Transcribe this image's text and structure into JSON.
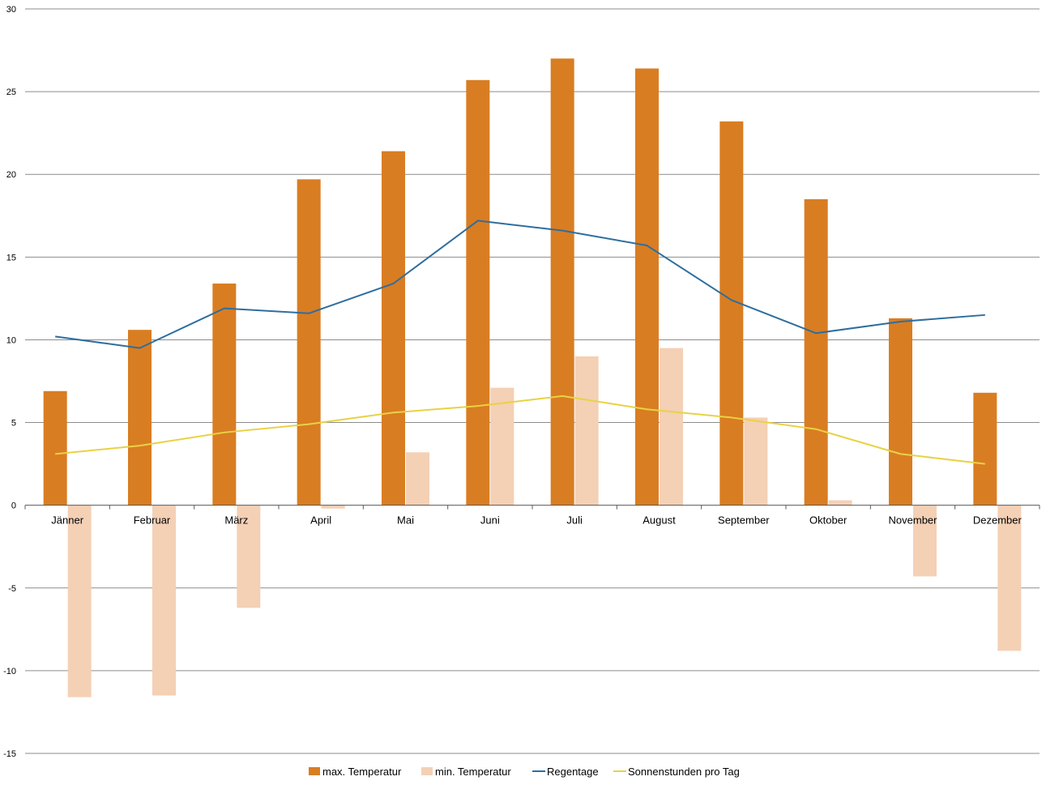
{
  "chart_data": {
    "type": "bar",
    "categories": [
      "Jänner",
      "Februar",
      "März",
      "April",
      "Mai",
      "Juni",
      "Juli",
      "August",
      "September",
      "Oktober",
      "November",
      "Dezember"
    ],
    "series": [
      {
        "name": "max. Temperatur",
        "type": "bar",
        "color": "#D97D22",
        "values": [
          6.9,
          10.6,
          13.4,
          19.7,
          21.4,
          25.7,
          27.0,
          26.4,
          23.2,
          18.5,
          11.3,
          6.8
        ]
      },
      {
        "name": "min. Temperatur",
        "type": "bar",
        "color": "#F4D0B5",
        "values": [
          -11.6,
          -11.5,
          -6.2,
          -0.2,
          3.2,
          7.1,
          9.0,
          9.5,
          5.3,
          0.3,
          -4.3,
          -8.8
        ]
      },
      {
        "name": "Regentage",
        "type": "line",
        "color": "#2E6E9E",
        "values": [
          10.2,
          9.5,
          11.9,
          11.6,
          13.4,
          17.2,
          16.6,
          15.7,
          12.4,
          10.4,
          11.1,
          11.5
        ]
      },
      {
        "name": "Sonnenstunden pro Tag",
        "type": "line",
        "color": "#E8D245",
        "values": [
          3.1,
          3.6,
          4.4,
          4.9,
          5.6,
          6.0,
          6.6,
          5.8,
          5.3,
          4.6,
          3.1,
          2.5
        ]
      }
    ],
    "ylim": [
      -15,
      30
    ],
    "yticks": [
      -15,
      -10,
      -5,
      0,
      5,
      10,
      15,
      20,
      25,
      30
    ],
    "title": "",
    "xlabel": "",
    "ylabel": "",
    "grid": true,
    "legend": "bottom"
  }
}
